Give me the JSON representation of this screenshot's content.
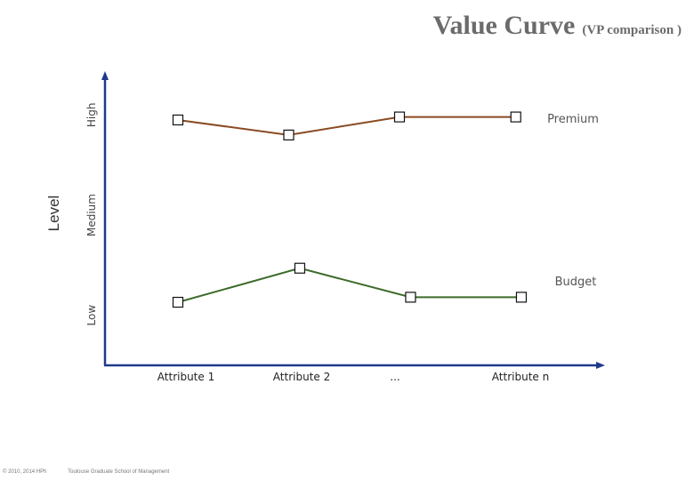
{
  "slide": {
    "title": "Value Curve",
    "title_suffix": "(VP comparison )",
    "footer_copyright": "© 2010, 2014 HPh",
    "footer_org": "Toulouse Graduate School of Management"
  },
  "chart_data": {
    "type": "line",
    "title": "Value Curve (VP comparison )",
    "ylabel": "Level",
    "xlabel": "",
    "categories": [
      "Attribute 1",
      "Attribute 2",
      "...",
      "Attribute n"
    ],
    "y_levels": [
      "Low",
      "Medium",
      "High"
    ],
    "ylim": [
      0,
      3
    ],
    "grid": false,
    "series": [
      {
        "name": "Premium",
        "color": "#8a4a22",
        "x": [
          0,
          1,
          2,
          3.05
        ],
        "values": [
          2.45,
          2.3,
          2.48,
          2.48
        ]
      },
      {
        "name": "Budget",
        "color": "#3d6b2a",
        "x": [
          0,
          1.1,
          2.1,
          3.1
        ],
        "values": [
          0.63,
          0.97,
          0.68,
          0.68
        ]
      }
    ],
    "axis_color": "#1f3a8a"
  }
}
